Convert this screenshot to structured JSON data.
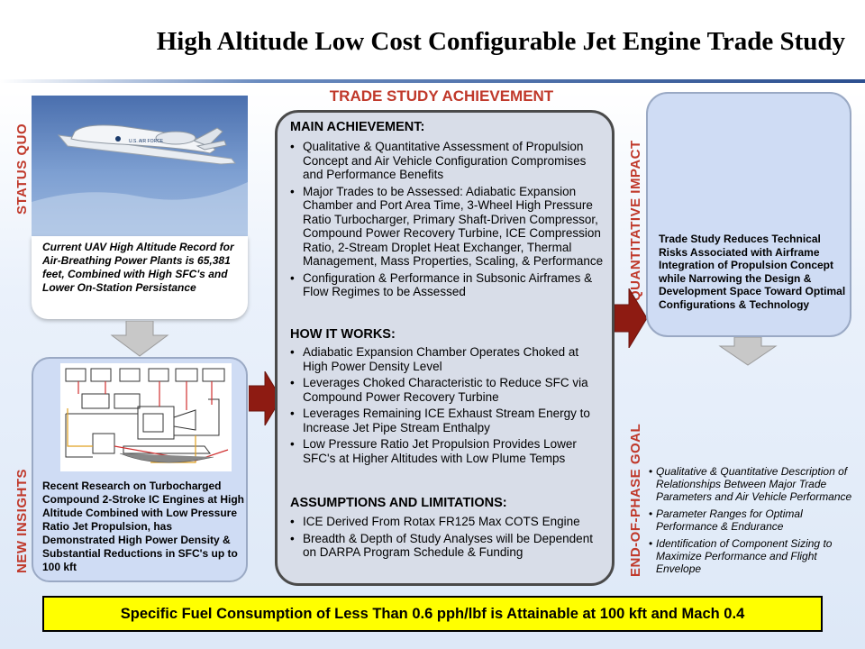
{
  "title": "High Altitude Low Cost Configurable Jet Engine Trade Study",
  "status_quo": {
    "label": "STATUS QUO",
    "image_alt": "RQ-4 Global Hawk UAV in flight",
    "text": "Current UAV High Altitude Record for Air-Breathing Power Plants is 65,381 feet, Combined with High SFC's and Lower On-Station Persistance"
  },
  "new_insights": {
    "label": "NEW INSIGHTS",
    "image_alt": "Turbocharged compound 2-stroke engine schematic",
    "text": "Recent Research on Turbocharged Compound 2-Stroke IC Engines at High Altitude Combined with Low Pressure Ratio Jet Propulsion, has Demonstrated High Power Density & Substantial Reductions in SFC's up to 100 kft"
  },
  "trade_study": {
    "heading": "TRADE STUDY ACHIEVEMENT",
    "main_title": "MAIN ACHIEVEMENT:",
    "main_items": [
      "Qualitative & Quantitative Assessment of Propulsion Concept and Air Vehicle Configuration Compromises and Performance Benefits",
      "Major Trades to be Assessed: Adiabatic Expansion Chamber and Port Area Time, 3-Wheel High Pressure Ratio Turbocharger, Primary Shaft-Driven Compressor, Compound Power Recovery Turbine, ICE Compression Ratio, 2-Stream Droplet Heat Exchanger, Thermal Management, Mass Properties, Scaling, & Performance",
      "Configuration & Performance in Subsonic Airframes & Flow Regimes to be Assessed"
    ],
    "how_title": "HOW IT WORKS:",
    "how_items": [
      "Adiabatic Expansion Chamber Operates Choked at High Power Density Level",
      "Leverages Choked Characteristic to Reduce SFC via Compound Power Recovery Turbine",
      "Leverages Remaining ICE Exhaust Stream Energy to Increase Jet Pipe Stream Enthalpy",
      "Low Pressure Ratio Jet Propulsion Provides Lower SFC's at Higher Altitudes with Low Plume Temps"
    ],
    "assume_title": "ASSUMPTIONS AND LIMITATIONS:",
    "assume_items": [
      "ICE Derived From Rotax FR125 Max COTS Engine",
      "Breadth & Depth of Study Analyses will be Dependent on DARPA Program Schedule & Funding"
    ]
  },
  "impact": {
    "label": "QUANTITATIVE IMPACT",
    "text": "Trade Study Reduces Technical Risks Associated with Airframe Integration of Propulsion Concept while Narrowing the Design & Development Space Toward Optimal Configurations & Technology"
  },
  "goal": {
    "label": "END-OF-PHASE GOAL",
    "items": [
      "Qualitative & Quantitative Description of Relationships Between Major Trade Parameters and Air Vehicle Performance",
      "Parameter Ranges for Optimal Performance & Endurance",
      "Identification of Component Sizing to Maximize Performance and Flight Envelope"
    ]
  },
  "banner": "Specific Fuel Consumption of Less Than 0.6 pph/lbf is Attainable at 100 kft and Mach 0.4",
  "colors": {
    "label_red": "#c0392b",
    "arrow_red": "#8e1b12",
    "panel_blue": "#cfdcf4",
    "center_gray": "#d8dde8",
    "banner_yellow": "#ffff00"
  }
}
